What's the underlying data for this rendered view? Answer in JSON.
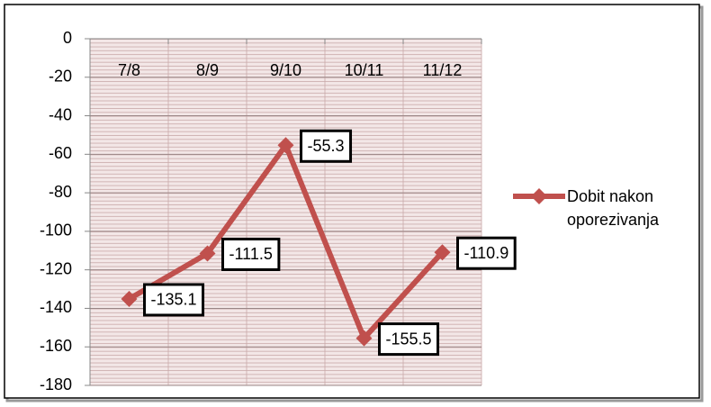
{
  "chart_data": {
    "type": "line",
    "categories": [
      "7/8",
      "8/9",
      "9/10",
      "10/11",
      "11/12"
    ],
    "series": [
      {
        "name": "Dobit nakon oporezivanja",
        "color": "#c0504d",
        "values": [
          -135.1,
          -111.5,
          -55.3,
          -155.5,
          -110.9
        ]
      }
    ],
    "ylim": [
      -180,
      0
    ],
    "yticks": [
      0,
      -20,
      -40,
      -60,
      -80,
      -100,
      -120,
      -140,
      -160,
      -180
    ],
    "grid": true,
    "legend": "right",
    "data_labels": true
  }
}
